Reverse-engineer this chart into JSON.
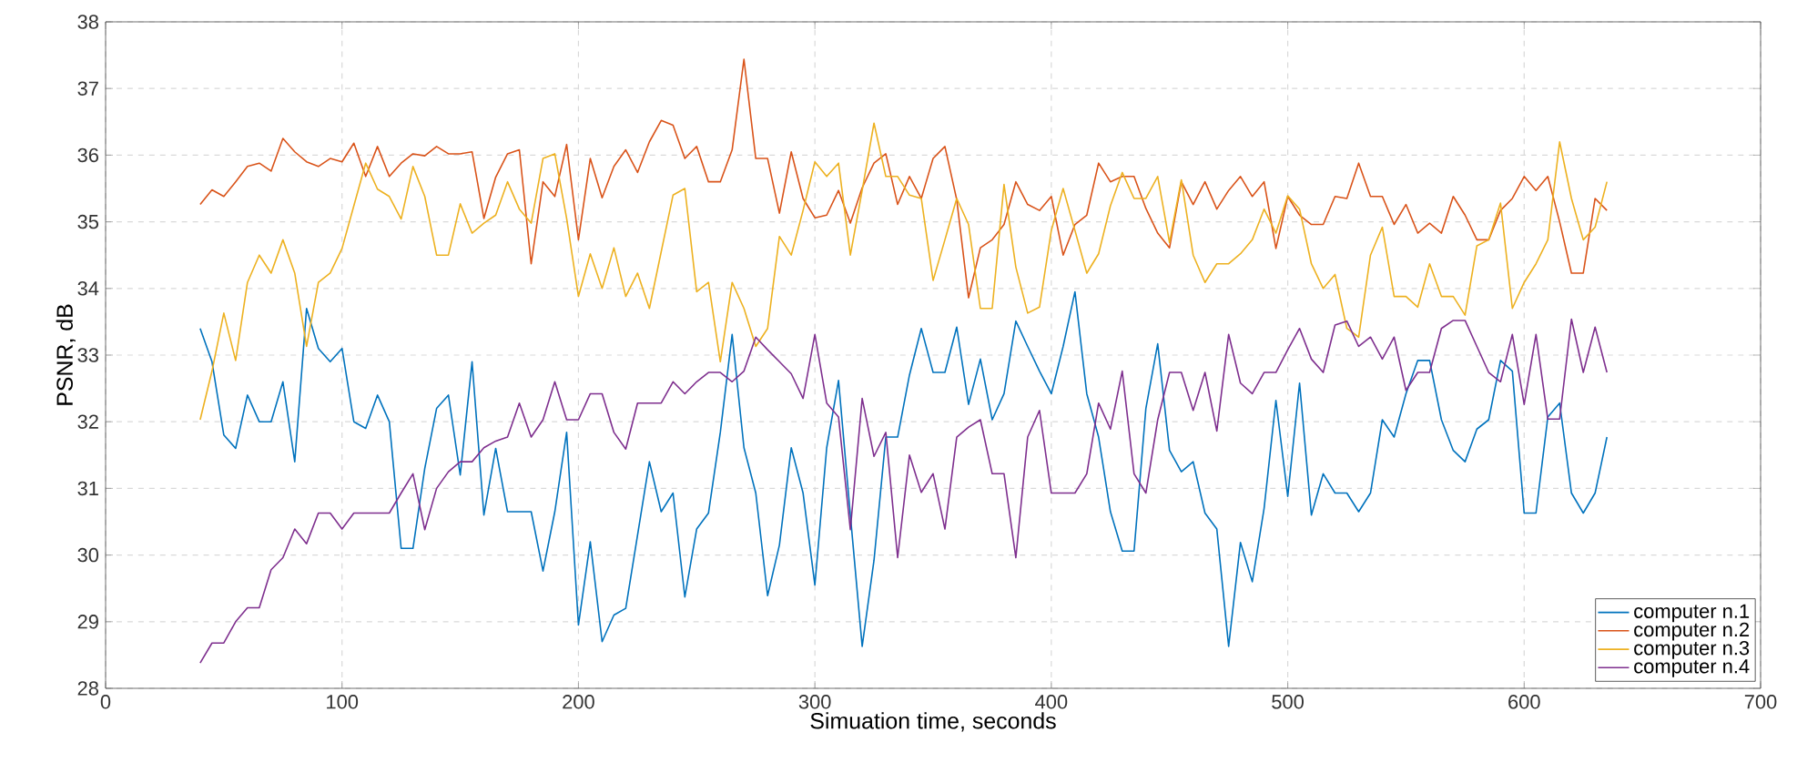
{
  "chart_data": {
    "type": "line",
    "xlabel": "Simuation time, seconds",
    "ylabel": "PSNR, dB",
    "xlim": [
      0,
      700
    ],
    "ylim": [
      28,
      38
    ],
    "xticks": [
      0,
      100,
      200,
      300,
      400,
      500,
      600,
      700
    ],
    "yticks": [
      28,
      29,
      30,
      31,
      32,
      33,
      34,
      35,
      36,
      37,
      38
    ],
    "grid": true,
    "legend": "bottom right",
    "marker": "none",
    "line_style": "solid",
    "x": [
      40,
      45,
      50,
      55,
      60,
      65,
      70,
      75,
      80,
      85,
      90,
      95,
      100,
      105,
      110,
      115,
      120,
      125,
      130,
      135,
      140,
      145,
      150,
      155,
      160,
      165,
      170,
      175,
      180,
      185,
      190,
      195,
      200,
      205,
      210,
      215,
      220,
      225,
      230,
      235,
      240,
      245,
      250,
      255,
      260,
      265,
      270,
      275,
      280,
      285,
      290,
      295,
      300,
      305,
      310,
      315,
      320,
      325,
      330,
      335,
      340,
      345,
      350,
      355,
      360,
      365,
      370,
      375,
      380,
      385,
      390,
      395,
      400,
      405,
      410,
      415,
      420,
      425,
      430,
      435,
      440,
      445,
      450,
      455,
      460,
      465,
      470,
      475,
      480,
      485,
      490,
      495,
      500,
      505,
      510,
      515,
      520,
      525,
      530,
      535,
      540,
      545,
      550,
      555,
      560,
      565,
      570,
      575,
      580,
      585,
      590,
      595,
      600,
      605,
      610,
      615,
      620,
      625,
      630,
      635
    ],
    "series": [
      {
        "name": "computer n.1",
        "color": "#0072bd",
        "values": [
          33.4,
          32.9,
          31.8,
          31.6,
          32.4,
          32.0,
          32.0,
          32.6,
          31.4,
          33.7,
          33.1,
          32.9,
          33.1,
          32.0,
          31.9,
          32.4,
          32.0,
          30.1,
          30.1,
          31.3,
          32.2,
          32.4,
          31.2,
          32.9,
          30.6,
          31.6,
          30.65,
          30.65,
          30.65,
          29.76,
          30.65,
          31.84,
          28.95,
          30.2,
          28.7,
          29.1,
          29.2,
          30.3,
          31.4,
          30.65,
          30.93,
          29.37,
          30.39,
          30.63,
          31.84,
          33.31,
          31.61,
          30.93,
          29.39,
          30.15,
          31.61,
          30.93,
          29.55,
          31.61,
          32.62,
          30.6,
          28.63,
          29.92,
          31.77,
          31.77,
          32.7,
          33.4,
          32.74,
          32.74,
          33.42,
          32.26,
          32.94,
          32.03,
          32.42,
          33.51,
          33.13,
          32.76,
          32.42,
          33.13,
          33.95,
          32.42,
          31.77,
          30.65,
          30.06,
          30.06,
          32.2,
          33.17,
          31.57,
          31.25,
          31.4,
          30.63,
          30.39,
          28.63,
          30.19,
          29.6,
          30.7,
          32.32,
          30.88,
          32.58,
          30.6,
          31.22,
          30.93,
          30.93,
          30.65,
          30.93,
          32.03,
          31.77,
          32.42,
          32.92,
          32.92,
          32.03,
          31.57,
          31.4,
          31.89,
          32.03,
          32.92,
          32.76,
          30.63,
          30.63,
          32.07,
          32.28,
          30.93,
          30.63,
          30.93,
          31.77
        ]
      },
      {
        "name": "computer n.2",
        "color": "#d95319",
        "values": [
          35.26,
          35.48,
          35.38,
          35.6,
          35.83,
          35.88,
          35.76,
          36.25,
          36.05,
          35.9,
          35.83,
          35.95,
          35.9,
          36.18,
          35.68,
          36.13,
          35.68,
          35.88,
          36.02,
          35.99,
          36.13,
          36.02,
          36.02,
          36.05,
          35.05,
          35.67,
          36.02,
          36.08,
          34.37,
          35.6,
          35.38,
          36.16,
          34.73,
          35.95,
          35.36,
          35.83,
          36.08,
          35.74,
          36.2,
          36.52,
          36.45,
          35.95,
          36.13,
          35.6,
          35.6,
          36.08,
          37.44,
          35.95,
          35.95,
          35.13,
          36.05,
          35.35,
          35.06,
          35.1,
          35.47,
          34.98,
          35.51,
          35.88,
          36.02,
          35.26,
          35.68,
          35.35,
          35.95,
          36.13,
          35.33,
          33.86,
          34.61,
          34.73,
          34.96,
          35.6,
          35.26,
          35.17,
          35.38,
          34.5,
          34.96,
          35.1,
          35.88,
          35.6,
          35.68,
          35.68,
          35.2,
          34.83,
          34.61,
          35.6,
          35.26,
          35.6,
          35.19,
          35.47,
          35.68,
          35.38,
          35.6,
          34.6,
          35.38,
          35.1,
          34.96,
          34.96,
          35.38,
          35.35,
          35.88,
          35.38,
          35.38,
          34.96,
          35.26,
          34.83,
          34.98,
          34.83,
          35.38,
          35.1,
          34.73,
          34.73,
          35.17,
          35.35,
          35.68,
          35.47,
          35.68,
          35.0,
          34.23,
          34.23,
          35.35,
          35.17
        ]
      },
      {
        "name": "computer n.3",
        "color": "#edb120",
        "values": [
          32.03,
          32.76,
          33.63,
          32.92,
          34.09,
          34.5,
          34.23,
          34.73,
          34.23,
          33.13,
          34.09,
          34.23,
          34.6,
          35.24,
          35.88,
          35.49,
          35.38,
          35.04,
          35.83,
          35.38,
          34.5,
          34.5,
          35.27,
          34.83,
          34.98,
          35.1,
          35.6,
          35.19,
          34.98,
          35.95,
          36.02,
          35.05,
          33.88,
          34.52,
          34.0,
          34.61,
          33.88,
          34.23,
          33.7,
          34.55,
          35.4,
          35.5,
          33.95,
          34.09,
          32.9,
          34.09,
          33.7,
          33.13,
          33.4,
          34.78,
          34.5,
          35.17,
          35.9,
          35.68,
          35.88,
          34.5,
          35.47,
          36.48,
          35.68,
          35.68,
          35.4,
          35.35,
          34.12,
          34.73,
          35.35,
          34.96,
          33.7,
          33.7,
          35.56,
          34.32,
          33.63,
          33.72,
          34.87,
          35.5,
          34.87,
          34.23,
          34.52,
          35.24,
          35.74,
          35.35,
          35.35,
          35.68,
          34.69,
          35.63,
          34.5,
          34.09,
          34.37,
          34.37,
          34.52,
          34.73,
          35.19,
          34.83,
          35.39,
          35.19,
          34.37,
          34.0,
          34.21,
          33.4,
          33.27,
          34.5,
          34.92,
          33.88,
          33.88,
          33.72,
          34.37,
          33.88,
          33.88,
          33.6,
          34.64,
          34.73,
          35.28,
          33.7,
          34.09,
          34.37,
          34.73,
          36.2,
          35.35,
          34.73,
          34.92,
          35.6
        ]
      },
      {
        "name": "computer n.4",
        "color": "#7e2f8e",
        "values": [
          28.38,
          28.68,
          28.68,
          29.0,
          29.21,
          29.21,
          29.78,
          29.96,
          30.39,
          30.17,
          30.63,
          30.63,
          30.39,
          30.63,
          30.63,
          30.63,
          30.63,
          30.93,
          31.22,
          30.38,
          31.0,
          31.25,
          31.4,
          31.4,
          31.61,
          31.71,
          31.77,
          32.28,
          31.77,
          32.03,
          32.6,
          32.03,
          32.03,
          32.42,
          32.42,
          31.84,
          31.59,
          32.28,
          32.28,
          32.28,
          32.6,
          32.42,
          32.6,
          32.74,
          32.74,
          32.6,
          32.76,
          33.27,
          33.08,
          32.9,
          32.72,
          32.35,
          33.31,
          32.28,
          32.07,
          30.38,
          32.35,
          31.48,
          31.84,
          29.96,
          31.5,
          30.94,
          31.22,
          30.39,
          31.77,
          31.92,
          32.03,
          31.22,
          31.22,
          29.96,
          31.77,
          32.17,
          30.93,
          30.93,
          30.93,
          31.22,
          32.28,
          31.89,
          32.76,
          31.22,
          30.93,
          32.03,
          32.74,
          32.74,
          32.17,
          32.74,
          31.86,
          33.31,
          32.58,
          32.42,
          32.74,
          32.74,
          33.08,
          33.4,
          32.94,
          32.74,
          33.45,
          33.51,
          33.13,
          33.27,
          32.94,
          33.27,
          32.47,
          32.74,
          32.74,
          33.4,
          33.52,
          33.52,
          33.13,
          32.74,
          32.6,
          33.31,
          32.26,
          33.31,
          32.04,
          32.04,
          33.54,
          32.74,
          33.42,
          32.74
        ]
      }
    ]
  }
}
